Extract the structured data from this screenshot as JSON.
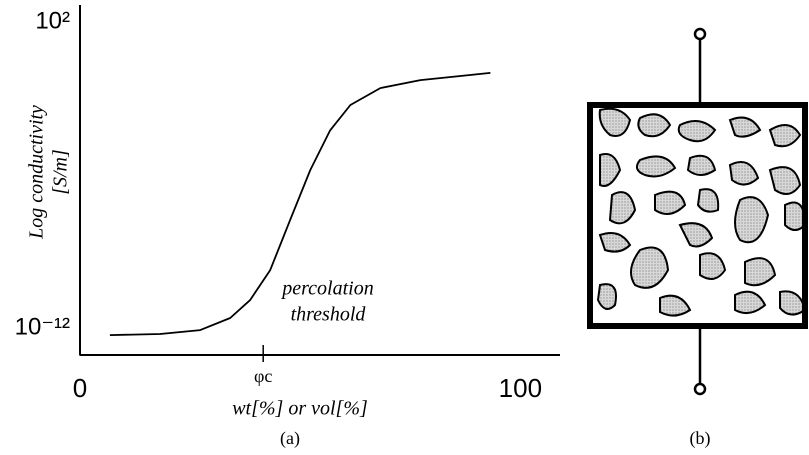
{
  "chart_data": {
    "type": "line",
    "ylabel": [
      "Log conductivity",
      "[S/m]"
    ],
    "xlabel": "wt[%] or vol[%]",
    "annotation": [
      "percolation",
      "threshold"
    ],
    "panel_label": "(a)",
    "x": [
      6.8,
      18.2,
      27.3,
      34.1,
      38.6,
      43.2,
      47.7,
      52.3,
      56.8,
      61.4,
      68.2,
      77.3,
      86.4,
      93.2
    ],
    "values": [
      4.8e-13,
      5.4e-13,
      8.1e-13,
      2.9e-12,
      1.9e-11,
      4.5e-10,
      8.7e-08,
      1.7e-05,
      0.0011,
      0.016,
      0.095,
      0.22,
      0.34,
      0.47
    ],
    "color": "#000000",
    "log_y": true,
    "xlim": [
      0,
      109
    ],
    "ylim": [
      5.9e-14,
      600
    ],
    "xticks": [
      0,
      {
        "value": 41.6,
        "label": "φc"
      },
      100
    ],
    "yticks": [
      {
        "value": 1e-12,
        "label": "10⁻¹²"
      },
      {
        "value": 100,
        "label": "10²"
      }
    ]
  },
  "diagram": {
    "panel_label": "(b)"
  }
}
